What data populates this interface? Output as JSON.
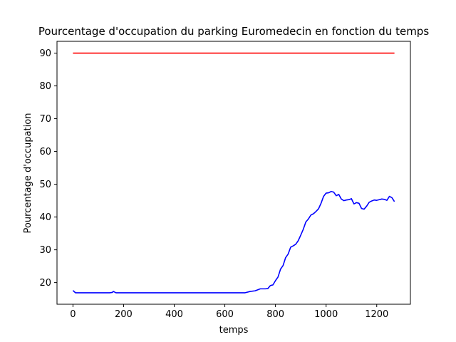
{
  "chart_data": {
    "type": "line",
    "title": "Pourcentage d'occupation du parking Euromedecin en fonction du temps",
    "xlabel": "temps",
    "ylabel": "Pourcentage d'occupation",
    "xlim": [
      -63,
      1333
    ],
    "ylim": [
      13.4,
      93.6
    ],
    "xticks": [
      0,
      200,
      400,
      600,
      800,
      1000,
      1200
    ],
    "yticks": [
      20,
      30,
      40,
      50,
      60,
      70,
      80,
      90
    ],
    "grid": false,
    "series": [
      {
        "color": "#ff0000",
        "x": [
          0,
          1270
        ],
        "y": [
          90,
          90
        ]
      },
      {
        "color": "#0000ff",
        "x": [
          0,
          10,
          50,
          100,
          145,
          155,
          160,
          170,
          250,
          400,
          550,
          680,
          700,
          720,
          740,
          760,
          770,
          780,
          790,
          800,
          810,
          820,
          830,
          840,
          850,
          860,
          870,
          880,
          890,
          900,
          910,
          920,
          930,
          940,
          950,
          960,
          970,
          980,
          990,
          1000,
          1010,
          1020,
          1030,
          1040,
          1050,
          1060,
          1070,
          1080,
          1090,
          1100,
          1110,
          1120,
          1130,
          1140,
          1150,
          1160,
          1170,
          1180,
          1190,
          1200,
          1210,
          1220,
          1230,
          1240,
          1250,
          1260,
          1270
        ],
        "y": [
          17.6,
          16.9,
          16.9,
          16.9,
          16.9,
          17.0,
          17.3,
          16.9,
          16.9,
          16.9,
          16.9,
          16.9,
          17.3,
          17.5,
          18.1,
          18.1,
          18.2,
          19.1,
          19.3,
          20.6,
          21.7,
          24.1,
          25.2,
          27.6,
          28.7,
          30.8,
          31.2,
          31.7,
          32.8,
          34.5,
          36.3,
          38.5,
          39.4,
          40.6,
          41.0,
          41.7,
          42.5,
          44.2,
          46.3,
          47.3,
          47.4,
          47.8,
          47.6,
          46.5,
          46.9,
          45.5,
          45.0,
          45.2,
          45.3,
          45.6,
          44.0,
          44.4,
          44.2,
          42.6,
          42.4,
          43.3,
          44.5,
          44.9,
          45.2,
          45.1,
          45.3,
          45.5,
          45.4,
          45.1,
          46.3,
          45.9,
          44.7
        ]
      }
    ]
  }
}
